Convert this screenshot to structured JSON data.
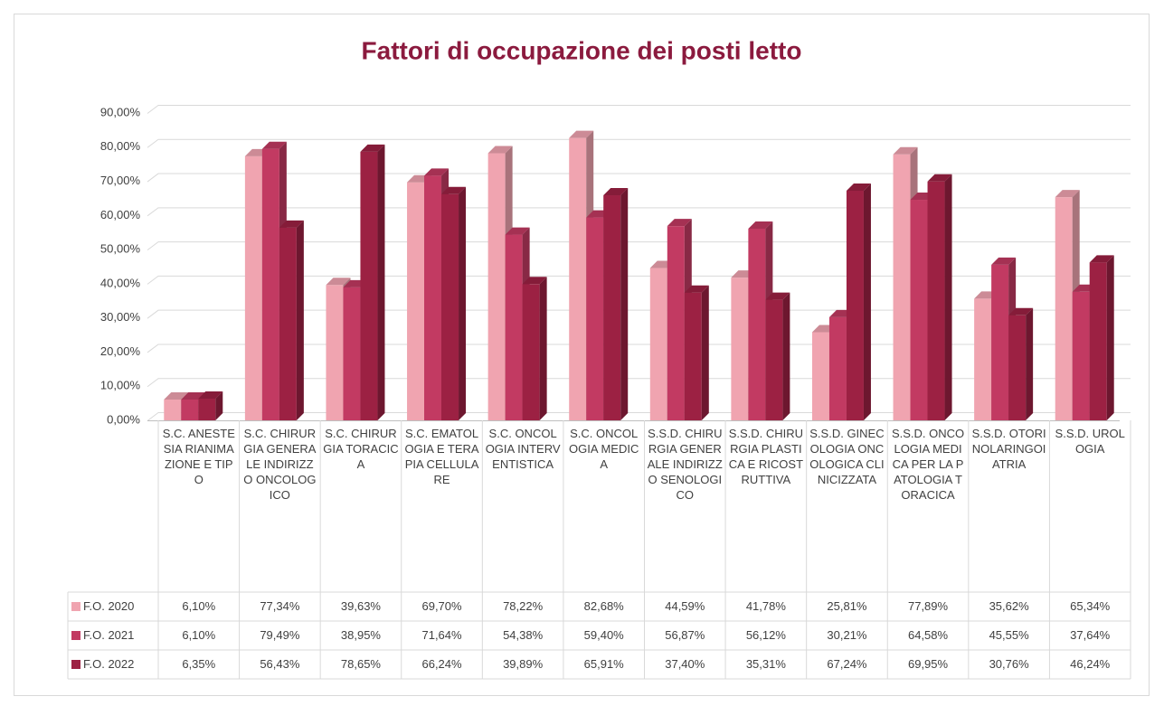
{
  "chart_data": {
    "type": "bar3d",
    "title": "Fattori di occupazione dei posti letto",
    "categories": [
      "S.C. ANESTESIA RIANIMAZIONE E TIPO",
      "S.C. CHIRURGIA GENERALE INDIRIZZO ONCOLOGICO",
      "S.C. CHIRURGIA TORACICA",
      "S.C. EMATOLOGIA E TERAPIA CELLULARE",
      "S.C. ONCOLOGIA INTERVENTISTICA",
      "S.C. ONCOLOGIA MEDICA",
      "S.S.D. CHIRURGIA GENERALE INDIRIZZO SENOLOGICO",
      "S.S.D. CHIRURGIA PLASTICA E RICOSTRUTTIVA",
      "S.S.D. GINECOLOGIA ONCOLOGICA CLINICIZZATA",
      "S.S.D. ONCOLOGIA MEDICA PER LA PATOLOGIA TORACICA",
      "S.S.D. OTORINOLARINGOIATRIA",
      "S.S.D. UROLOGIA"
    ],
    "series": [
      {
        "name": "F.O. 2020",
        "color": "#f0a4b0",
        "values": [
          6.1,
          77.34,
          39.63,
          69.7,
          78.22,
          82.68,
          44.59,
          41.78,
          25.81,
          77.89,
          35.62,
          65.34
        ],
        "value_labels": [
          "6,10%",
          "77,34%",
          "39,63%",
          "69,70%",
          "78,22%",
          "82,68%",
          "44,59%",
          "41,78%",
          "25,81%",
          "77,89%",
          "35,62%",
          "65,34%"
        ]
      },
      {
        "name": "F.O. 2021",
        "color": "#c23a62",
        "values": [
          6.1,
          79.49,
          38.95,
          71.64,
          54.38,
          59.4,
          56.87,
          56.12,
          30.21,
          64.58,
          45.55,
          37.64
        ],
        "value_labels": [
          "6,10%",
          "79,49%",
          "38,95%",
          "71,64%",
          "54,38%",
          "59,40%",
          "56,87%",
          "56,12%",
          "30,21%",
          "64,58%",
          "45,55%",
          "37,64%"
        ]
      },
      {
        "name": "F.O. 2022",
        "color": "#9c2143",
        "values": [
          6.35,
          56.43,
          78.65,
          66.24,
          39.89,
          65.91,
          37.4,
          35.31,
          67.24,
          69.95,
          30.76,
          46.24
        ],
        "value_labels": [
          "6,35%",
          "56,43%",
          "78,65%",
          "66,24%",
          "39,89%",
          "65,91%",
          "37,40%",
          "35,31%",
          "67,24%",
          "69,95%",
          "30,76%",
          "46,24%"
        ]
      }
    ],
    "ylim": [
      0,
      90
    ],
    "yticks": [
      {
        "value": 0,
        "label": "0,00%"
      },
      {
        "value": 10,
        "label": "10,00%"
      },
      {
        "value": 20,
        "label": "20,00%"
      },
      {
        "value": 30,
        "label": "30,00%"
      },
      {
        "value": 40,
        "label": "40,00%"
      },
      {
        "value": 50,
        "label": "50,00%"
      },
      {
        "value": 60,
        "label": "60,00%"
      },
      {
        "value": 70,
        "label": "70,00%"
      },
      {
        "value": 80,
        "label": "80,00%"
      },
      {
        "value": 90,
        "label": "90,00%"
      }
    ],
    "grid": true
  }
}
